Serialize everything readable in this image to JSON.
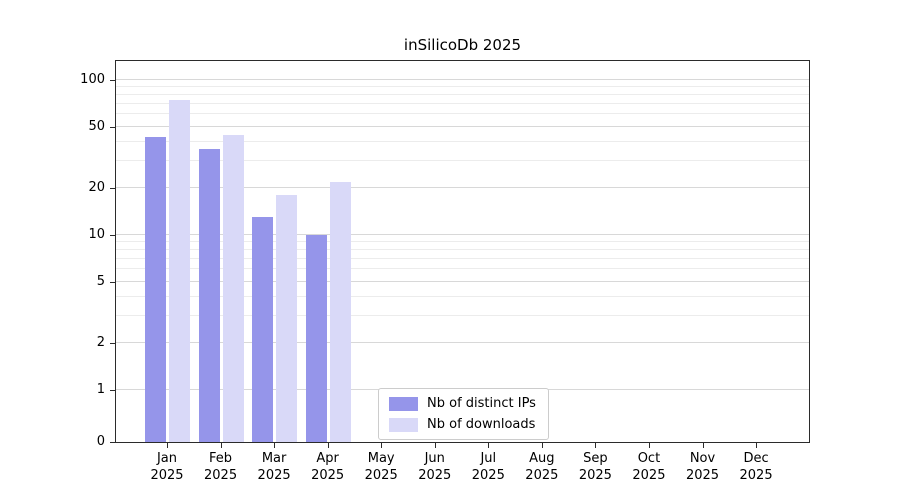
{
  "figure": {
    "title": "inSilicoDb 2025"
  },
  "chart_data": {
    "type": "bar",
    "title": "inSilicoDb 2025",
    "categories": [
      "Jan",
      "Feb",
      "Mar",
      "Apr",
      "May",
      "Jun",
      "Jul",
      "Aug",
      "Sep",
      "Oct",
      "Nov",
      "Dec"
    ],
    "year_label": "2025",
    "series": [
      {
        "name": "Nb of distinct IPs",
        "color": "#9595ea",
        "values": [
          43,
          36,
          13,
          10,
          null,
          null,
          null,
          null,
          null,
          null,
          null,
          null
        ]
      },
      {
        "name": "Nb of downloads",
        "color": "#d9d9f8",
        "values": [
          74,
          44,
          18,
          22,
          null,
          null,
          null,
          null,
          null,
          null,
          null,
          null
        ]
      }
    ],
    "yscale": "symlog",
    "yticks": [
      0,
      1,
      2,
      5,
      10,
      20,
      50,
      100
    ],
    "minor_gridlines": [
      3,
      4,
      6,
      7,
      8,
      9,
      30,
      40,
      60,
      70,
      80,
      90
    ],
    "ylim": [
      0,
      140
    ],
    "grid": "horizontal",
    "legend_position": "bottom-center"
  }
}
